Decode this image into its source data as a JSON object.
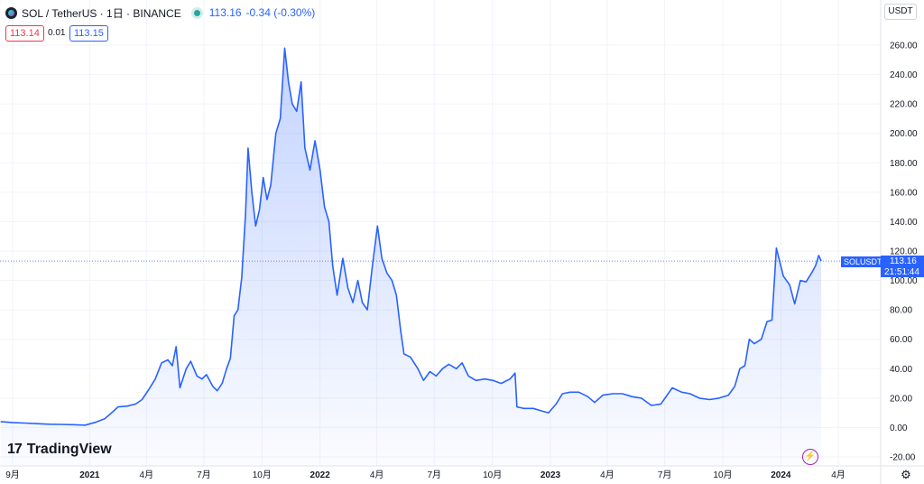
{
  "header": {
    "symbol_line": "SOL / TetherUS · 1日 · BINANCE",
    "last_price": "113.16",
    "change": "-0.34 (-0.30%)",
    "bid": "113.14",
    "spread": "0.01",
    "ask": "113.15"
  },
  "currency_button": "USDT",
  "branding": "TradingView",
  "price_label": {
    "symbol": "SOLUSDT",
    "price": "113.16",
    "countdown": "21:51:44"
  },
  "colors": {
    "line": "#2962ff",
    "area_top": "rgba(41,98,255,0.28)",
    "area_bottom": "rgba(41,98,255,0.02)",
    "grid": "#f0f3fa",
    "axis_text": "#131722"
  },
  "icons": [
    "symbol-logo-icon",
    "market-open-dot-icon",
    "flash-icon",
    "gear-icon"
  ],
  "chart_data": {
    "type": "area",
    "title": "",
    "xlabel": "",
    "ylabel": "",
    "ylim": [
      -24,
      268
    ],
    "y_ticks": [
      "-20.00",
      "0.00",
      "20.00",
      "40.00",
      "60.00",
      "80.00",
      "100.00",
      "120.00",
      "140.00",
      "160.00",
      "180.00",
      "200.00",
      "220.00",
      "240.00",
      "260.00"
    ],
    "x_ticks": [
      "9月",
      "2021",
      "4月",
      "7月",
      "10月",
      "2022",
      "4月",
      "7月",
      "10月",
      "2023",
      "4月",
      "7月",
      "10月",
      "2024",
      "4月"
    ],
    "x_tick_dates": [
      "2020-09-01",
      "2021-01-01",
      "2021-04-01",
      "2021-07-01",
      "2021-10-01",
      "2022-01-01",
      "2022-04-01",
      "2022-07-01",
      "2022-10-01",
      "2023-01-01",
      "2023-04-01",
      "2023-07-01",
      "2023-10-01",
      "2024-01-01",
      "2024-04-01"
    ],
    "grid": true,
    "last_value": 113.16,
    "series": [
      {
        "name": "SOLUSDT",
        "points": [
          [
            "2020-08-13",
            4.0
          ],
          [
            "2020-09-01",
            3.4
          ],
          [
            "2020-09-20",
            3.0
          ],
          [
            "2020-10-10",
            2.6
          ],
          [
            "2020-10-30",
            2.2
          ],
          [
            "2020-11-15",
            2.1
          ],
          [
            "2020-12-05",
            1.9
          ],
          [
            "2020-12-25",
            1.6
          ],
          [
            "2021-01-10",
            3.5
          ],
          [
            "2021-01-25",
            6.0
          ],
          [
            "2021-02-05",
            10.0
          ],
          [
            "2021-02-15",
            14.0
          ],
          [
            "2021-03-01",
            14.5
          ],
          [
            "2021-03-15",
            16.0
          ],
          [
            "2021-03-25",
            19.0
          ],
          [
            "2021-04-05",
            26.0
          ],
          [
            "2021-04-15",
            33.0
          ],
          [
            "2021-04-25",
            44.0
          ],
          [
            "2021-05-05",
            46.0
          ],
          [
            "2021-05-12",
            42.0
          ],
          [
            "2021-05-18",
            55.0
          ],
          [
            "2021-05-24",
            27.0
          ],
          [
            "2021-06-03",
            40.0
          ],
          [
            "2021-06-10",
            45.0
          ],
          [
            "2021-06-20",
            35.0
          ],
          [
            "2021-06-28",
            33.0
          ],
          [
            "2021-07-05",
            36.0
          ],
          [
            "2021-07-15",
            28.0
          ],
          [
            "2021-07-22",
            25.0
          ],
          [
            "2021-07-30",
            30.0
          ],
          [
            "2021-08-06",
            40.0
          ],
          [
            "2021-08-12",
            47.0
          ],
          [
            "2021-08-18",
            76.0
          ],
          [
            "2021-08-24",
            80.0
          ],
          [
            "2021-08-30",
            102.0
          ],
          [
            "2021-09-05",
            145.0
          ],
          [
            "2021-09-09",
            190.0
          ],
          [
            "2021-09-15",
            160.0
          ],
          [
            "2021-09-21",
            137.0
          ],
          [
            "2021-09-27",
            148.0
          ],
          [
            "2021-10-03",
            170.0
          ],
          [
            "2021-10-09",
            155.0
          ],
          [
            "2021-10-15",
            165.0
          ],
          [
            "2021-10-23",
            200.0
          ],
          [
            "2021-10-30",
            210.0
          ],
          [
            "2021-11-06",
            258.0
          ],
          [
            "2021-11-12",
            235.0
          ],
          [
            "2021-11-18",
            220.0
          ],
          [
            "2021-11-25",
            215.0
          ],
          [
            "2021-12-02",
            235.0
          ],
          [
            "2021-12-08",
            190.0
          ],
          [
            "2021-12-16",
            175.0
          ],
          [
            "2021-12-24",
            195.0
          ],
          [
            "2022-01-01",
            175.0
          ],
          [
            "2022-01-08",
            150.0
          ],
          [
            "2022-01-15",
            140.0
          ],
          [
            "2022-01-21",
            110.0
          ],
          [
            "2022-01-28",
            90.0
          ],
          [
            "2022-02-06",
            115.0
          ],
          [
            "2022-02-14",
            95.0
          ],
          [
            "2022-02-22",
            85.0
          ],
          [
            "2022-03-02",
            100.0
          ],
          [
            "2022-03-09",
            85.0
          ],
          [
            "2022-03-17",
            80.0
          ],
          [
            "2022-03-25",
            110.0
          ],
          [
            "2022-04-02",
            137.0
          ],
          [
            "2022-04-09",
            115.0
          ],
          [
            "2022-04-17",
            105.0
          ],
          [
            "2022-04-25",
            100.0
          ],
          [
            "2022-05-02",
            90.0
          ],
          [
            "2022-05-09",
            65.0
          ],
          [
            "2022-05-14",
            50.0
          ],
          [
            "2022-05-24",
            48.0
          ],
          [
            "2022-06-05",
            40.0
          ],
          [
            "2022-06-14",
            32.0
          ],
          [
            "2022-06-24",
            38.0
          ],
          [
            "2022-07-04",
            35.0
          ],
          [
            "2022-07-14",
            40.0
          ],
          [
            "2022-07-24",
            43.0
          ],
          [
            "2022-08-05",
            40.0
          ],
          [
            "2022-08-14",
            44.0
          ],
          [
            "2022-08-24",
            35.0
          ],
          [
            "2022-09-05",
            32.0
          ],
          [
            "2022-09-19",
            33.0
          ],
          [
            "2022-10-02",
            32.0
          ],
          [
            "2022-10-15",
            30.0
          ],
          [
            "2022-10-29",
            33.0
          ],
          [
            "2022-11-06",
            37.0
          ],
          [
            "2022-11-09",
            14.0
          ],
          [
            "2022-11-20",
            13.0
          ],
          [
            "2022-12-05",
            13.0
          ],
          [
            "2022-12-20",
            11.0
          ],
          [
            "2022-12-29",
            10.0
          ],
          [
            "2023-01-10",
            16.0
          ],
          [
            "2023-01-20",
            23.0
          ],
          [
            "2023-02-01",
            24.0
          ],
          [
            "2023-02-15",
            24.0
          ],
          [
            "2023-03-01",
            21.0
          ],
          [
            "2023-03-12",
            17.0
          ],
          [
            "2023-03-25",
            22.0
          ],
          [
            "2023-04-10",
            23.0
          ],
          [
            "2023-04-25",
            23.0
          ],
          [
            "2023-05-10",
            21.0
          ],
          [
            "2023-05-25",
            20.0
          ],
          [
            "2023-06-10",
            15.0
          ],
          [
            "2023-06-25",
            16.0
          ],
          [
            "2023-07-13",
            27.0
          ],
          [
            "2023-07-28",
            24.0
          ],
          [
            "2023-08-10",
            23.0
          ],
          [
            "2023-08-25",
            20.0
          ],
          [
            "2023-09-10",
            19.0
          ],
          [
            "2023-09-25",
            20.0
          ],
          [
            "2023-10-10",
            22.0
          ],
          [
            "2023-10-20",
            28.0
          ],
          [
            "2023-10-28",
            40.0
          ],
          [
            "2023-11-05",
            42.0
          ],
          [
            "2023-11-12",
            60.0
          ],
          [
            "2023-11-20",
            57.0
          ],
          [
            "2023-12-01",
            60.0
          ],
          [
            "2023-12-10",
            72.0
          ],
          [
            "2023-12-18",
            73.0
          ],
          [
            "2023-12-25",
            122.0
          ],
          [
            "2024-01-05",
            103.0
          ],
          [
            "2024-01-15",
            97.0
          ],
          [
            "2024-01-23",
            84.0
          ],
          [
            "2024-02-01",
            100.0
          ],
          [
            "2024-02-10",
            99.0
          ],
          [
            "2024-02-20",
            106.0
          ],
          [
            "2024-02-25",
            110.0
          ],
          [
            "2024-03-01",
            117.0
          ],
          [
            "2024-03-05",
            113.16
          ]
        ]
      }
    ]
  }
}
